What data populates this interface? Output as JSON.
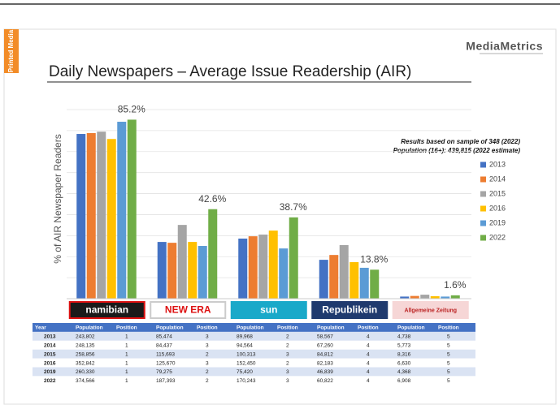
{
  "sidebar": "Printed Media",
  "brand": "MediaMetrics",
  "chart_data": {
    "type": "bar",
    "title": "Daily Newspapers – Average Issue Readership (AIR)",
    "y_label": "% of AIR Newspaper Readers",
    "annotations": [
      "Results based on sample of 348 (2022)",
      "Population (16+): 439,815 (2022 estimate)"
    ],
    "categories": [
      "namibian",
      "NEW ERA",
      "sun",
      "Republikein",
      "Allgemeine Zeitung"
    ],
    "ylim": [
      0,
      90
    ],
    "yticks": [
      0,
      10,
      20,
      30,
      40,
      50,
      60,
      70,
      80,
      90
    ],
    "grid": true,
    "series": [
      {
        "name": "2013",
        "color": "#4472c4",
        "values": [
          78.4,
          27,
          28.6,
          18.5,
          1.0
        ]
      },
      {
        "name": "2014",
        "color": "#ed7d31",
        "values": [
          78.8,
          26.6,
          29.7,
          20.8,
          1.3
        ]
      },
      {
        "name": "2015",
        "color": "#a5a5a5",
        "values": [
          79.5,
          35.1,
          30.5,
          25.5,
          1.9
        ]
      },
      {
        "name": "2016",
        "color": "#ffc000",
        "values": [
          76,
          27,
          32.4,
          17.4,
          1.2
        ]
      },
      {
        "name": "2019",
        "color": "#5b9bd5",
        "values": [
          84.2,
          25.1,
          23.9,
          14.7,
          1.0
        ]
      },
      {
        "name": "2022",
        "color": "#70ad47",
        "values": [
          85.2,
          42.6,
          38.7,
          13.8,
          1.6
        ],
        "value_labels": [
          "85.2%",
          "42.6%",
          "38.7%",
          "13.8%",
          "1.6%"
        ]
      }
    ]
  },
  "table": {
    "header": [
      "Year",
      "Population",
      "Position",
      "Population",
      "Position",
      "Population",
      "Position",
      "Population",
      "Position",
      "Population",
      "Position"
    ],
    "rows": [
      [
        "2013",
        "243,802",
        "1",
        "85,474",
        "3",
        "89,968",
        "2",
        "58,567",
        "4",
        "4,738",
        "5"
      ],
      [
        "2014",
        "248,135",
        "1",
        "84,437",
        "3",
        "94,564",
        "2",
        "67,260",
        "4",
        "5,773",
        "5"
      ],
      [
        "2015",
        "258,856",
        "1",
        "115,693",
        "2",
        "100,313",
        "3",
        "84,812",
        "4",
        "8,316",
        "5"
      ],
      [
        "2016",
        "352,842",
        "1",
        "125,670",
        "3",
        "152,450",
        "2",
        "82,183",
        "4",
        "6,630",
        "5"
      ],
      [
        "2019",
        "260,330",
        "1",
        "79,275",
        "2",
        "75,420",
        "3",
        "46,839",
        "4",
        "4,368",
        "5"
      ],
      [
        "2022",
        "374,566",
        "1",
        "187,393",
        "2",
        "170,243",
        "3",
        "60,822",
        "4",
        "6,908",
        "5"
      ]
    ]
  }
}
